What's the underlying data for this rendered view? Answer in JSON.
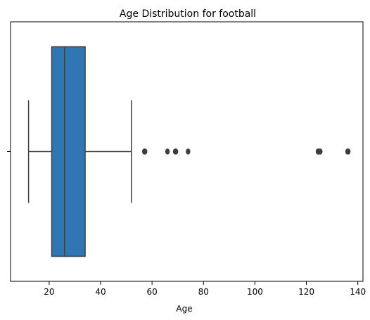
{
  "chart_data": {
    "type": "box",
    "title": "Age Distribution for football",
    "xlabel": "Age",
    "ylabel": "",
    "xlim": [
      5,
      142
    ],
    "xticks": [
      20,
      40,
      60,
      80,
      100,
      120,
      140
    ],
    "yticks": [
      ""
    ],
    "orientation": "horizontal",
    "grid": false,
    "colors": {
      "box": "#2f77b4",
      "line": "#3f3f3f",
      "outlier": "#3d3d3d"
    },
    "box": {
      "whisker_low": 12,
      "q1": 21,
      "median": 26,
      "q3": 34,
      "whisker_high": 52,
      "outliers": [
        57,
        57.3,
        66,
        69,
        69.3,
        74,
        124.5,
        124.8,
        125.1,
        125.4,
        136,
        136.3
      ]
    }
  }
}
